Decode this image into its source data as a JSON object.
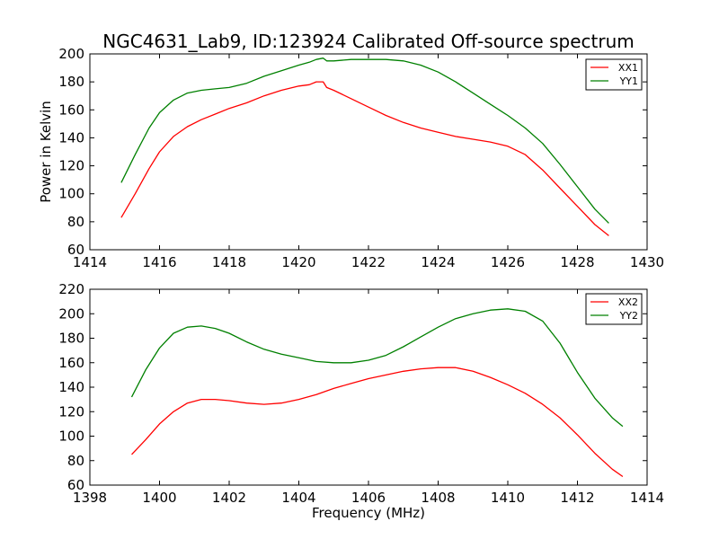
{
  "chart_data": [
    {
      "type": "line",
      "title": "NGC4631_Lab9, ID:123924 Calibrated Off-source spectrum",
      "xlabel": "",
      "ylabel": "Power in Kelvin",
      "xlim": [
        1414,
        1430
      ],
      "ylim": [
        60,
        200
      ],
      "xticks": [
        1414,
        1416,
        1418,
        1420,
        1422,
        1424,
        1426,
        1428,
        1430
      ],
      "yticks": [
        60,
        80,
        100,
        120,
        140,
        160,
        180,
        200
      ],
      "grid": false,
      "legend_position": "top-right",
      "series": [
        {
          "name": "XX1",
          "color": "#ff0000",
          "x": [
            1414.9,
            1415.3,
            1415.7,
            1416.0,
            1416.4,
            1416.8,
            1417.2,
            1417.6,
            1418.0,
            1418.5,
            1419.0,
            1419.5,
            1420.0,
            1420.3,
            1420.5,
            1420.7,
            1420.8,
            1421.0,
            1421.5,
            1422.0,
            1422.5,
            1423.0,
            1423.5,
            1424.0,
            1424.5,
            1425.0,
            1425.5,
            1426.0,
            1426.5,
            1427.0,
            1427.5,
            1428.0,
            1428.5,
            1428.9
          ],
          "y": [
            83,
            100,
            118,
            130,
            141,
            148,
            153,
            157,
            161,
            165,
            170,
            174,
            177,
            178,
            180,
            180,
            176,
            174,
            168,
            162,
            156,
            151,
            147,
            144,
            141,
            139,
            137,
            134,
            128,
            117,
            104,
            91,
            78,
            70
          ]
        },
        {
          "name": "YY1",
          "color": "#008000",
          "x": [
            1414.9,
            1415.3,
            1415.7,
            1416.0,
            1416.4,
            1416.8,
            1417.2,
            1417.6,
            1418.0,
            1418.5,
            1419.0,
            1419.5,
            1420.0,
            1420.3,
            1420.5,
            1420.7,
            1420.8,
            1421.0,
            1421.5,
            1422.0,
            1422.5,
            1423.0,
            1423.5,
            1424.0,
            1424.5,
            1425.0,
            1425.5,
            1426.0,
            1426.5,
            1427.0,
            1427.5,
            1428.0,
            1428.5,
            1428.9
          ],
          "y": [
            108,
            128,
            147,
            158,
            167,
            172,
            174,
            175,
            176,
            179,
            184,
            188,
            192,
            194,
            196,
            197,
            195,
            195,
            196,
            196,
            196,
            195,
            192,
            187,
            180,
            172,
            164,
            156,
            147,
            136,
            121,
            105,
            89,
            79
          ]
        }
      ]
    },
    {
      "type": "line",
      "title": "",
      "xlabel": "Frequency (MHz)",
      "ylabel": "",
      "xlim": [
        1398,
        1414
      ],
      "ylim": [
        60,
        220
      ],
      "xticks": [
        1398,
        1400,
        1402,
        1404,
        1406,
        1408,
        1410,
        1412,
        1414
      ],
      "yticks": [
        60,
        80,
        100,
        120,
        140,
        160,
        180,
        200,
        220
      ],
      "grid": false,
      "legend_position": "top-right",
      "series": [
        {
          "name": "XX2",
          "color": "#ff0000",
          "x": [
            1399.2,
            1399.6,
            1400.0,
            1400.4,
            1400.8,
            1401.2,
            1401.6,
            1402.0,
            1402.5,
            1403.0,
            1403.5,
            1404.0,
            1404.5,
            1405.0,
            1405.5,
            1406.0,
            1406.5,
            1407.0,
            1407.5,
            1408.0,
            1408.5,
            1409.0,
            1409.5,
            1410.0,
            1410.5,
            1411.0,
            1411.5,
            1412.0,
            1412.5,
            1413.0,
            1413.3
          ],
          "y": [
            85,
            97,
            110,
            120,
            127,
            130,
            130,
            129,
            127,
            126,
            127,
            130,
            134,
            139,
            143,
            147,
            150,
            153,
            155,
            156,
            156,
            153,
            148,
            142,
            135,
            126,
            115,
            101,
            86,
            73,
            67
          ]
        },
        {
          "name": "YY2",
          "color": "#008000",
          "x": [
            1399.2,
            1399.6,
            1400.0,
            1400.4,
            1400.8,
            1401.2,
            1401.6,
            1402.0,
            1402.5,
            1403.0,
            1403.5,
            1404.0,
            1404.5,
            1405.0,
            1405.5,
            1406.0,
            1406.5,
            1407.0,
            1407.5,
            1408.0,
            1408.5,
            1409.0,
            1409.5,
            1410.0,
            1410.5,
            1411.0,
            1411.5,
            1412.0,
            1412.5,
            1413.0,
            1413.3
          ],
          "y": [
            132,
            154,
            172,
            184,
            189,
            190,
            188,
            184,
            177,
            171,
            167,
            164,
            161,
            160,
            160,
            162,
            166,
            173,
            181,
            189,
            196,
            200,
            203,
            204,
            202,
            194,
            176,
            152,
            131,
            115,
            108
          ]
        }
      ]
    }
  ]
}
